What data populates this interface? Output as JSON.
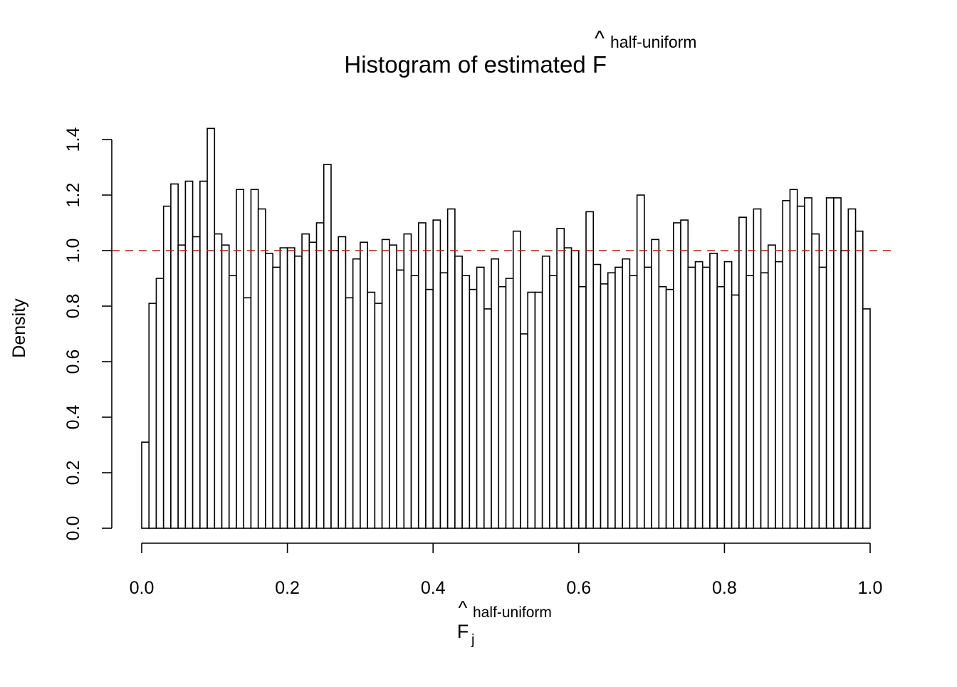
{
  "chart_data": {
    "type": "bar",
    "title": "Histogram of estimated F",
    "title_hat": "^",
    "title_superscript": "half-uniform",
    "xlabel": "F",
    "xlabel_hat": "^",
    "xlabel_subscript": "j",
    "xlabel_superscript": "half-uniform",
    "ylabel": "Density",
    "xlim": [
      0,
      1
    ],
    "ylim": [
      0,
      1.4
    ],
    "bin_width": 0.01,
    "x_ticks": [
      "0.0",
      "0.2",
      "0.4",
      "0.6",
      "0.8",
      "1.0"
    ],
    "y_ticks": [
      "0.0",
      "0.2",
      "0.4",
      "0.6",
      "0.8",
      "1.0",
      "1.2",
      "1.4"
    ],
    "reference_line": {
      "y": 1.0,
      "style": "dashed",
      "color": "#ff0000"
    },
    "values": [
      0.31,
      0.81,
      0.9,
      1.16,
      1.24,
      1.02,
      1.25,
      1.05,
      1.25,
      1.44,
      1.06,
      1.02,
      0.91,
      1.22,
      0.83,
      1.22,
      1.15,
      0.99,
      0.94,
      1.01,
      1.01,
      0.98,
      1.06,
      1.03,
      1.1,
      1.31,
      1.0,
      1.05,
      0.83,
      0.97,
      1.03,
      0.85,
      0.81,
      1.04,
      1.02,
      0.93,
      1.06,
      0.91,
      1.1,
      0.86,
      1.11,
      0.92,
      1.15,
      0.98,
      0.91,
      0.86,
      0.94,
      0.79,
      0.97,
      0.87,
      0.9,
      1.07,
      0.7,
      0.85,
      0.85,
      0.98,
      0.91,
      1.08,
      1.01,
      1.0,
      0.87,
      1.14,
      0.95,
      0.88,
      0.92,
      0.94,
      0.97,
      0.91,
      1.2,
      0.94,
      1.04,
      0.87,
      0.86,
      1.1,
      1.11,
      0.94,
      0.96,
      0.94,
      0.99,
      0.87,
      0.96,
      0.84,
      1.12,
      0.91,
      1.15,
      0.92,
      1.02,
      0.96,
      1.18,
      1.22,
      1.16,
      1.19,
      1.06,
      0.94,
      1.19,
      1.19,
      1.0,
      1.15,
      1.07,
      0.79
    ],
    "grid": false
  }
}
